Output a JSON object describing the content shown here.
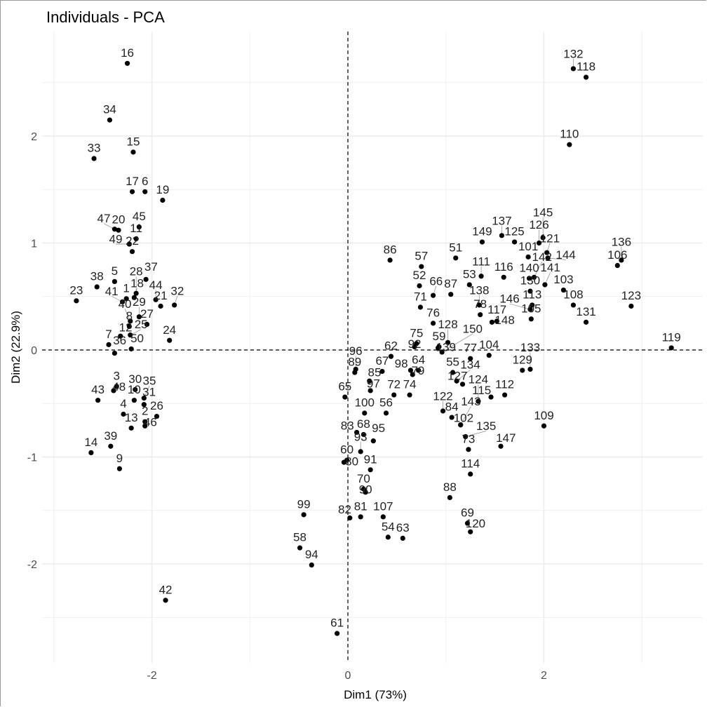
{
  "chart_data": {
    "type": "scatter",
    "title": "Individuals - PCA",
    "xlabel": "Dim1 (73%)",
    "ylabel": "Dim2 (22.9%)",
    "xlim": [
      -3.05,
      3.7
    ],
    "ylim": [
      -2.9,
      2.98
    ],
    "xticks": [
      -2,
      0,
      2
    ],
    "yticks": [
      -2,
      -1,
      0,
      1,
      2
    ],
    "grid": true,
    "reference_lines": {
      "x": 0,
      "y": 0,
      "style": "dashed"
    },
    "point_color": "#000000",
    "points": [
      [
        "1",
        -2.26,
        0.48
      ],
      [
        "2",
        -2.07,
        -0.67
      ],
      [
        "3",
        -2.36,
        -0.34
      ],
      [
        "4",
        -2.29,
        -0.6
      ],
      [
        "5",
        -2.38,
        0.64
      ],
      [
        "6",
        -2.07,
        1.48
      ],
      [
        "7",
        -2.44,
        0.05
      ],
      [
        "8",
        -2.23,
        0.22
      ],
      [
        "9",
        -2.33,
        -1.11
      ],
      [
        "10",
        -2.18,
        -0.47
      ],
      [
        "11",
        -2.16,
        1.04
      ],
      [
        "12",
        -2.32,
        0.13
      ],
      [
        "13",
        -2.21,
        -0.73
      ],
      [
        "14",
        -2.62,
        -0.96
      ],
      [
        "15",
        -2.19,
        1.85
      ],
      [
        "16",
        -2.25,
        2.68
      ],
      [
        "17",
        -2.2,
        1.48
      ],
      [
        "18",
        -2.18,
        0.49
      ],
      [
        "19",
        -1.89,
        1.4
      ],
      [
        "20",
        -2.34,
        1.12
      ],
      [
        "21",
        -1.91,
        0.41
      ],
      [
        "22",
        -2.2,
        0.92
      ],
      [
        "23",
        -2.77,
        0.46
      ],
      [
        "24",
        -1.82,
        0.09
      ],
      [
        "25",
        -2.22,
        0.14
      ],
      [
        "26",
        -1.95,
        -0.62
      ],
      [
        "27",
        -2.05,
        0.24
      ],
      [
        "28",
        -2.16,
        0.53
      ],
      [
        "29",
        -2.13,
        0.31
      ],
      [
        "30",
        -2.17,
        -0.37
      ],
      [
        "31",
        -2.08,
        -0.51
      ],
      [
        "32",
        -1.77,
        0.42
      ],
      [
        "33",
        -2.59,
        1.79
      ],
      [
        "34",
        -2.43,
        2.15
      ],
      [
        "35",
        -2.08,
        -0.45
      ],
      [
        "36",
        -2.38,
        -0.03
      ],
      [
        "37",
        -2.06,
        0.66
      ],
      [
        "38",
        -2.56,
        0.59
      ],
      [
        "39",
        -2.42,
        -0.9
      ],
      [
        "40",
        -2.22,
        0.27
      ],
      [
        "41",
        -2.3,
        0.45
      ],
      [
        "42",
        -1.86,
        -2.34
      ],
      [
        "43",
        -2.55,
        -0.47
      ],
      [
        "44",
        -1.96,
        0.47
      ],
      [
        "45",
        -2.13,
        1.15
      ],
      [
        "46",
        -2.07,
        -0.71
      ],
      [
        "47",
        -2.38,
        1.13
      ],
      [
        "48",
        -2.39,
        -0.38
      ],
      [
        "49",
        -2.23,
        0.99
      ],
      [
        "50",
        -2.21,
        0.01
      ],
      [
        "51",
        1.1,
        0.86
      ],
      [
        "52",
        0.73,
        0.6
      ],
      [
        "53",
        1.24,
        0.61
      ],
      [
        "54",
        0.41,
        -1.75
      ],
      [
        "55",
        1.07,
        -0.21
      ],
      [
        "56",
        0.39,
        -0.59
      ],
      [
        "57",
        0.75,
        0.78
      ],
      [
        "58",
        -0.49,
        -1.85
      ],
      [
        "59",
        0.93,
        0.03
      ],
      [
        "60",
        -0.01,
        -1.03
      ],
      [
        "61",
        -0.11,
        -2.65
      ],
      [
        "62",
        0.44,
        -0.06
      ],
      [
        "63",
        0.56,
        -1.76
      ],
      [
        "64",
        0.72,
        -0.19
      ],
      [
        "65",
        -0.03,
        -0.44
      ],
      [
        "66",
        0.87,
        0.51
      ],
      [
        "67",
        0.35,
        -0.2
      ],
      [
        "68",
        0.16,
        -0.79
      ],
      [
        "69",
        1.22,
        -1.62
      ],
      [
        "70",
        0.16,
        -1.3
      ],
      [
        "71",
        0.74,
        0.4
      ],
      [
        "72",
        0.47,
        -0.42
      ],
      [
        "73",
        1.23,
        -0.93
      ],
      [
        "74",
        0.63,
        -0.42
      ],
      [
        "75",
        0.7,
        0.06
      ],
      [
        "76",
        0.87,
        0.25
      ],
      [
        "77",
        1.25,
        -0.08
      ],
      [
        "78",
        1.35,
        0.33
      ],
      [
        "79",
        0.66,
        -0.23
      ],
      [
        "80",
        -0.04,
        -1.05
      ],
      [
        "81",
        0.13,
        -1.56
      ],
      [
        "82",
        0.02,
        -1.57
      ],
      [
        "83",
        0.09,
        -0.77
      ],
      [
        "84",
        1.06,
        -0.63
      ],
      [
        "85",
        0.22,
        -0.29
      ],
      [
        "86",
        0.43,
        0.84
      ],
      [
        "87",
        1.05,
        0.52
      ],
      [
        "88",
        1.04,
        -1.38
      ],
      [
        "89",
        0.07,
        -0.21
      ],
      [
        "90",
        0.18,
        -1.33
      ],
      [
        "91",
        0.23,
        -1.12
      ],
      [
        "92",
        0.68,
        0.03
      ],
      [
        "93",
        0.13,
        -0.95
      ],
      [
        "94",
        -0.37,
        -2.01
      ],
      [
        "95",
        0.26,
        -0.85
      ],
      [
        "96",
        0.08,
        -0.18
      ],
      [
        "97",
        0.23,
        -0.38
      ],
      [
        "98",
        0.64,
        -0.19
      ],
      [
        "99",
        -0.45,
        -1.54
      ],
      [
        "100",
        0.17,
        -0.59
      ],
      [
        "101",
        1.84,
        0.87
      ],
      [
        "102",
        1.15,
        -0.7
      ],
      [
        "103",
        2.2,
        0.56
      ],
      [
        "104",
        1.44,
        -0.05
      ],
      [
        "105",
        1.87,
        0.29
      ],
      [
        "106",
        2.75,
        0.79
      ],
      [
        "107",
        0.36,
        -1.56
      ],
      [
        "108",
        2.3,
        0.42
      ],
      [
        "109",
        2.0,
        -0.71
      ],
      [
        "110",
        2.26,
        1.92
      ],
      [
        "111",
        1.36,
        0.69
      ],
      [
        "112",
        1.6,
        -0.42
      ],
      [
        "113",
        1.88,
        0.42
      ],
      [
        "114",
        1.25,
        -1.16
      ],
      [
        "115",
        1.46,
        -0.44
      ],
      [
        "116",
        1.59,
        0.68
      ],
      [
        "117",
        1.47,
        0.26
      ],
      [
        "118",
        2.43,
        2.55
      ],
      [
        "119",
        3.3,
        0.02
      ],
      [
        "120",
        1.25,
        -1.7
      ],
      [
        "121",
        2.03,
        0.91
      ],
      [
        "122",
        0.97,
        -0.57
      ],
      [
        "123",
        2.89,
        0.41
      ],
      [
        "124",
        1.33,
        -0.48
      ],
      [
        "125",
        1.7,
        1.01
      ],
      [
        "126",
        1.95,
        1.0
      ],
      [
        "127",
        1.17,
        -0.32
      ],
      [
        "128",
        1.02,
        0.07
      ],
      [
        "129",
        1.78,
        -0.19
      ],
      [
        "130",
        1.86,
        0.55
      ],
      [
        "131",
        2.43,
        0.26
      ],
      [
        "132",
        2.3,
        2.63
      ],
      [
        "133",
        1.86,
        -0.18
      ],
      [
        "134",
        1.11,
        -0.29
      ],
      [
        "135",
        1.2,
        -0.81
      ],
      [
        "136",
        2.79,
        0.84
      ],
      [
        "137",
        1.57,
        1.07
      ],
      [
        "138",
        1.34,
        0.42
      ],
      [
        "139",
        0.92,
        0.02
      ],
      [
        "140",
        1.85,
        0.67
      ],
      [
        "141",
        2.01,
        0.61
      ],
      [
        "142",
        1.9,
        0.68
      ],
      [
        "143",
        1.15,
        -0.7
      ],
      [
        "144",
        2.04,
        0.86
      ],
      [
        "145",
        1.99,
        1.05
      ],
      [
        "146",
        1.86,
        0.38
      ],
      [
        "147",
        1.56,
        -0.9
      ],
      [
        "148",
        1.52,
        0.27
      ],
      [
        "149",
        1.37,
        1.01
      ],
      [
        "150",
        0.96,
        -0.02
      ]
    ]
  }
}
